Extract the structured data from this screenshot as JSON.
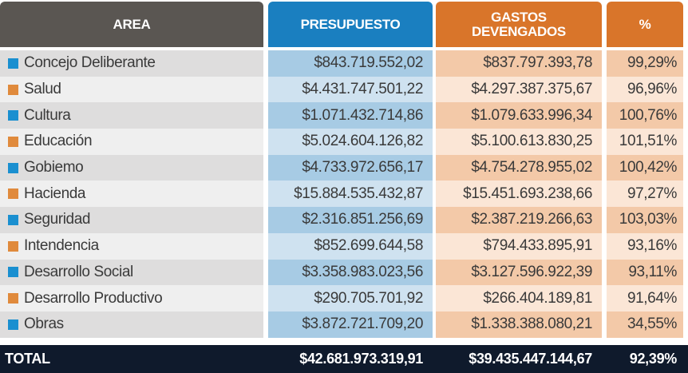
{
  "headers": {
    "area": "AREA",
    "presupuesto": "PRESUPUESTO",
    "gastos_line1": "GASTOS",
    "gastos_line2": "DEVENGADOS",
    "pct": "%"
  },
  "colors": {
    "blue_marker": "#1a8fd0",
    "orange_marker": "#e08a3c",
    "header_dark": "#5a5652",
    "header_blue": "#1a7fc0",
    "header_orange": "#d9752a",
    "total_bg": "#0f1a2c"
  },
  "rows": [
    {
      "area": "Concejo Deliberante",
      "marker": "blue",
      "presupuesto": "$843.719.552,02",
      "gastos": "$837.797.393,78",
      "pct": "99,29%"
    },
    {
      "area": "Salud",
      "marker": "orange",
      "presupuesto": "$4.431.747.501,22",
      "gastos": "$4.297.387.375,67",
      "pct": "96,96%"
    },
    {
      "area": "Cultura",
      "marker": "blue",
      "presupuesto": "$1.071.432.714,86",
      "gastos": "$1.079.633.996,34",
      "pct": "100,76%"
    },
    {
      "area": "Educación",
      "marker": "orange",
      "presupuesto": "$5.024.604.126,82",
      "gastos": "$5.100.613.830,25",
      "pct": "101,51%"
    },
    {
      "area": "Gobiemo",
      "marker": "blue",
      "presupuesto": "$4.733.972.656,17",
      "gastos": "$4.754.278.955,02",
      "pct": "100,42%"
    },
    {
      "area": "Hacienda",
      "marker": "orange",
      "presupuesto": "$15.884.535.432,87",
      "gastos": "$15.451.693.238,66",
      "pct": "97,27%"
    },
    {
      "area": "Seguridad",
      "marker": "blue",
      "presupuesto": "$2.316.851.256,69",
      "gastos": "$2.387.219.266,63",
      "pct": "103,03%"
    },
    {
      "area": "Intendencia",
      "marker": "orange",
      "presupuesto": "$852.699.644,58",
      "gastos": "$794.433.895,91",
      "pct": "93,16%"
    },
    {
      "area": "Desarrollo Social",
      "marker": "blue",
      "presupuesto": "$3.358.983.023,56",
      "gastos": "$3.127.596.922,39",
      "pct": "93,11%"
    },
    {
      "area": "Desarrollo Productivo",
      "marker": "orange",
      "presupuesto": "$290.705.701,92",
      "gastos": "$266.404.189,81",
      "pct": "91,64%"
    },
    {
      "area": "Obras",
      "marker": "blue",
      "presupuesto": "$3.872.721.709,20",
      "gastos": "$1.338.388.080,21",
      "pct": "34,55%"
    }
  ],
  "total": {
    "label": "TOTAL",
    "presupuesto": "$42.681.973.319,91",
    "gastos": "$39.435.447.144,67",
    "pct": "92,39%"
  }
}
